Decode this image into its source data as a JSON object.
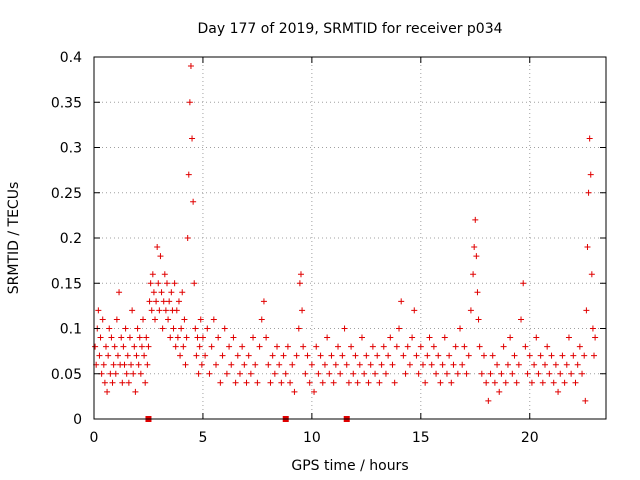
{
  "chart_data": {
    "type": "scatter",
    "title": "Day 177 of 2019, SRMTID for receiver p034",
    "xlabel": "GPS time / hours",
    "ylabel": "SRMTID / TECUs",
    "xlim": [
      0,
      23.5
    ],
    "ylim": [
      0,
      0.4
    ],
    "x_ticks": [
      0,
      5,
      10,
      15,
      20
    ],
    "y_ticks": [
      0,
      0.05,
      0.1,
      0.15,
      0.2,
      0.25,
      0.3,
      0.35,
      0.4
    ],
    "x_tick_labels": [
      "0",
      "5",
      "10",
      "15",
      "20"
    ],
    "y_tick_labels": [
      "0",
      "0.05",
      "0.1",
      "0.15",
      "0.2",
      "0.25",
      "0.3",
      "0.35",
      "0.4"
    ],
    "grid": true,
    "marker": "+",
    "color": "#e00000",
    "series": [
      {
        "name": "SRMTID",
        "points": [
          [
            0.05,
            0.08
          ],
          [
            0.1,
            0.06
          ],
          [
            0.15,
            0.1
          ],
          [
            0.2,
            0.12
          ],
          [
            0.25,
            0.07
          ],
          [
            0.3,
            0.09
          ],
          [
            0.35,
            0.05
          ],
          [
            0.4,
            0.11
          ],
          [
            0.45,
            0.06
          ],
          [
            0.5,
            0.04
          ],
          [
            0.55,
            0.08
          ],
          [
            0.6,
            0.03
          ],
          [
            0.65,
            0.07
          ],
          [
            0.7,
            0.1
          ],
          [
            0.75,
            0.05
          ],
          [
            0.8,
            0.09
          ],
          [
            0.85,
            0.04
          ],
          [
            0.9,
            0.06
          ],
          [
            0.95,
            0.08
          ],
          [
            1.0,
            0.05
          ],
          [
            1.05,
            0.11
          ],
          [
            1.1,
            0.07
          ],
          [
            1.15,
            0.14
          ],
          [
            1.2,
            0.06
          ],
          [
            1.25,
            0.09
          ],
          [
            1.3,
            0.04
          ],
          [
            1.35,
            0.08
          ],
          [
            1.4,
            0.06
          ],
          [
            1.45,
            0.1
          ],
          [
            1.5,
            0.05
          ],
          [
            1.55,
            0.07
          ],
          [
            1.6,
            0.04
          ],
          [
            1.65,
            0.09
          ],
          [
            1.7,
            0.06
          ],
          [
            1.75,
            0.12
          ],
          [
            1.8,
            0.05
          ],
          [
            1.85,
            0.08
          ],
          [
            1.9,
            0.03
          ],
          [
            1.95,
            0.07
          ],
          [
            2.0,
            0.1
          ],
          [
            2.05,
            0.06
          ],
          [
            2.1,
            0.09
          ],
          [
            2.15,
            0.05
          ],
          [
            2.2,
            0.08
          ],
          [
            2.25,
            0.11
          ],
          [
            2.3,
            0.07
          ],
          [
            2.35,
            0.04
          ],
          [
            2.4,
            0.09
          ],
          [
            2.45,
            0.06
          ],
          [
            2.5,
            0.08
          ],
          [
            2.55,
            0.13
          ],
          [
            2.6,
            0.15
          ],
          [
            2.65,
            0.12
          ],
          [
            2.7,
            0.16
          ],
          [
            2.75,
            0.14
          ],
          [
            2.8,
            0.11
          ],
          [
            2.85,
            0.13
          ],
          [
            2.9,
            0.19
          ],
          [
            2.95,
            0.15
          ],
          [
            3.0,
            0.12
          ],
          [
            3.05,
            0.18
          ],
          [
            3.1,
            0.14
          ],
          [
            3.15,
            0.1
          ],
          [
            3.2,
            0.13
          ],
          [
            3.25,
            0.16
          ],
          [
            3.3,
            0.12
          ],
          [
            3.35,
            0.15
          ],
          [
            3.4,
            0.11
          ],
          [
            3.45,
            0.13
          ],
          [
            3.5,
            0.09
          ],
          [
            3.55,
            0.14
          ],
          [
            3.6,
            0.12
          ],
          [
            3.65,
            0.1
          ],
          [
            3.7,
            0.15
          ],
          [
            3.75,
            0.08
          ],
          [
            3.8,
            0.12
          ],
          [
            3.85,
            0.09
          ],
          [
            3.9,
            0.13
          ],
          [
            3.95,
            0.07
          ],
          [
            4.0,
            0.1
          ],
          [
            4.05,
            0.14
          ],
          [
            4.1,
            0.08
          ],
          [
            4.15,
            0.11
          ],
          [
            4.2,
            0.06
          ],
          [
            4.25,
            0.09
          ],
          [
            4.3,
            0.2
          ],
          [
            4.35,
            0.27
          ],
          [
            4.4,
            0.35
          ],
          [
            4.45,
            0.39
          ],
          [
            4.5,
            0.31
          ],
          [
            4.55,
            0.24
          ],
          [
            4.6,
            0.15
          ],
          [
            4.65,
            0.1
          ],
          [
            4.7,
            0.07
          ],
          [
            4.75,
            0.09
          ],
          [
            4.8,
            0.05
          ],
          [
            4.85,
            0.08
          ],
          [
            4.9,
            0.11
          ],
          [
            4.95,
            0.06
          ],
          [
            5.0,
            0.09
          ],
          [
            5.1,
            0.07
          ],
          [
            5.2,
            0.1
          ],
          [
            5.3,
            0.05
          ],
          [
            5.4,
            0.08
          ],
          [
            5.5,
            0.11
          ],
          [
            5.6,
            0.06
          ],
          [
            5.7,
            0.09
          ],
          [
            5.8,
            0.04
          ],
          [
            5.9,
            0.07
          ],
          [
            6.0,
            0.1
          ],
          [
            6.1,
            0.05
          ],
          [
            6.2,
            0.08
          ],
          [
            6.3,
            0.06
          ],
          [
            6.4,
            0.09
          ],
          [
            6.5,
            0.04
          ],
          [
            6.6,
            0.07
          ],
          [
            6.7,
            0.05
          ],
          [
            6.8,
            0.08
          ],
          [
            6.9,
            0.06
          ],
          [
            7.0,
            0.04
          ],
          [
            7.1,
            0.07
          ],
          [
            7.2,
            0.05
          ],
          [
            7.3,
            0.09
          ],
          [
            7.4,
            0.06
          ],
          [
            7.5,
            0.04
          ],
          [
            7.6,
            0.08
          ],
          [
            7.7,
            0.11
          ],
          [
            7.8,
            0.13
          ],
          [
            7.9,
            0.09
          ],
          [
            8.0,
            0.06
          ],
          [
            8.1,
            0.04
          ],
          [
            8.2,
            0.07
          ],
          [
            8.3,
            0.05
          ],
          [
            8.4,
            0.08
          ],
          [
            8.5,
            0.06
          ],
          [
            8.6,
            0.04
          ],
          [
            8.7,
            0.07
          ],
          [
            8.8,
            0.05
          ],
          [
            8.9,
            0.08
          ],
          [
            9.0,
            0.04
          ],
          [
            9.1,
            0.06
          ],
          [
            9.2,
            0.03
          ],
          [
            9.3,
            0.07
          ],
          [
            9.4,
            0.1
          ],
          [
            9.45,
            0.15
          ],
          [
            9.5,
            0.16
          ],
          [
            9.55,
            0.12
          ],
          [
            9.6,
            0.08
          ],
          [
            9.7,
            0.05
          ],
          [
            9.8,
            0.07
          ],
          [
            9.9,
            0.04
          ],
          [
            10.0,
            0.06
          ],
          [
            10.1,
            0.03
          ],
          [
            10.2,
            0.08
          ],
          [
            10.3,
            0.05
          ],
          [
            10.4,
            0.07
          ],
          [
            10.5,
            0.04
          ],
          [
            10.6,
            0.06
          ],
          [
            10.7,
            0.09
          ],
          [
            10.8,
            0.05
          ],
          [
            10.9,
            0.07
          ],
          [
            11.0,
            0.04
          ],
          [
            11.1,
            0.06
          ],
          [
            11.2,
            0.08
          ],
          [
            11.3,
            0.05
          ],
          [
            11.4,
            0.07
          ],
          [
            11.5,
            0.1
          ],
          [
            11.6,
            0.06
          ],
          [
            11.7,
            0.04
          ],
          [
            11.8,
            0.08
          ],
          [
            11.9,
            0.05
          ],
          [
            12.0,
            0.07
          ],
          [
            12.1,
            0.04
          ],
          [
            12.2,
            0.06
          ],
          [
            12.3,
            0.09
          ],
          [
            12.4,
            0.05
          ],
          [
            12.5,
            0.07
          ],
          [
            12.6,
            0.04
          ],
          [
            12.7,
            0.06
          ],
          [
            12.8,
            0.08
          ],
          [
            12.9,
            0.05
          ],
          [
            13.0,
            0.07
          ],
          [
            13.1,
            0.04
          ],
          [
            13.2,
            0.06
          ],
          [
            13.3,
            0.08
          ],
          [
            13.4,
            0.05
          ],
          [
            13.5,
            0.07
          ],
          [
            13.6,
            0.09
          ],
          [
            13.7,
            0.06
          ],
          [
            13.8,
            0.04
          ],
          [
            13.9,
            0.08
          ],
          [
            14.0,
            0.1
          ],
          [
            14.1,
            0.13
          ],
          [
            14.2,
            0.07
          ],
          [
            14.3,
            0.05
          ],
          [
            14.4,
            0.08
          ],
          [
            14.5,
            0.06
          ],
          [
            14.6,
            0.09
          ],
          [
            14.7,
            0.12
          ],
          [
            14.8,
            0.07
          ],
          [
            14.9,
            0.05
          ],
          [
            15.0,
            0.08
          ],
          [
            15.1,
            0.06
          ],
          [
            15.2,
            0.04
          ],
          [
            15.3,
            0.07
          ],
          [
            15.4,
            0.09
          ],
          [
            15.5,
            0.06
          ],
          [
            15.6,
            0.08
          ],
          [
            15.7,
            0.05
          ],
          [
            15.8,
            0.07
          ],
          [
            15.9,
            0.04
          ],
          [
            16.0,
            0.06
          ],
          [
            16.1,
            0.09
          ],
          [
            16.2,
            0.05
          ],
          [
            16.3,
            0.07
          ],
          [
            16.4,
            0.04
          ],
          [
            16.5,
            0.06
          ],
          [
            16.6,
            0.08
          ],
          [
            16.7,
            0.05
          ],
          [
            16.8,
            0.1
          ],
          [
            16.9,
            0.06
          ],
          [
            17.0,
            0.08
          ],
          [
            17.1,
            0.05
          ],
          [
            17.2,
            0.07
          ],
          [
            17.3,
            0.12
          ],
          [
            17.4,
            0.16
          ],
          [
            17.45,
            0.19
          ],
          [
            17.5,
            0.22
          ],
          [
            17.55,
            0.18
          ],
          [
            17.6,
            0.14
          ],
          [
            17.65,
            0.11
          ],
          [
            17.7,
            0.08
          ],
          [
            17.8,
            0.05
          ],
          [
            17.9,
            0.07
          ],
          [
            18.0,
            0.04
          ],
          [
            18.1,
            0.02
          ],
          [
            18.2,
            0.05
          ],
          [
            18.3,
            0.07
          ],
          [
            18.4,
            0.04
          ],
          [
            18.5,
            0.06
          ],
          [
            18.6,
            0.03
          ],
          [
            18.7,
            0.05
          ],
          [
            18.8,
            0.08
          ],
          [
            18.9,
            0.04
          ],
          [
            19.0,
            0.06
          ],
          [
            19.1,
            0.09
          ],
          [
            19.2,
            0.05
          ],
          [
            19.3,
            0.07
          ],
          [
            19.4,
            0.04
          ],
          [
            19.5,
            0.06
          ],
          [
            19.6,
            0.11
          ],
          [
            19.7,
            0.15
          ],
          [
            19.8,
            0.08
          ],
          [
            19.9,
            0.05
          ],
          [
            20.0,
            0.07
          ],
          [
            20.1,
            0.04
          ],
          [
            20.2,
            0.06
          ],
          [
            20.3,
            0.09
          ],
          [
            20.4,
            0.05
          ],
          [
            20.5,
            0.07
          ],
          [
            20.6,
            0.04
          ],
          [
            20.7,
            0.06
          ],
          [
            20.8,
            0.08
          ],
          [
            20.9,
            0.05
          ],
          [
            21.0,
            0.07
          ],
          [
            21.1,
            0.04
          ],
          [
            21.2,
            0.06
          ],
          [
            21.3,
            0.03
          ],
          [
            21.4,
            0.05
          ],
          [
            21.5,
            0.07
          ],
          [
            21.6,
            0.04
          ],
          [
            21.7,
            0.06
          ],
          [
            21.8,
            0.09
          ],
          [
            21.9,
            0.05
          ],
          [
            22.0,
            0.07
          ],
          [
            22.1,
            0.04
          ],
          [
            22.2,
            0.06
          ],
          [
            22.3,
            0.08
          ],
          [
            22.4,
            0.05
          ],
          [
            22.5,
            0.07
          ],
          [
            22.55,
            0.02
          ],
          [
            22.6,
            0.12
          ],
          [
            22.65,
            0.19
          ],
          [
            22.7,
            0.25
          ],
          [
            22.75,
            0.31
          ],
          [
            22.8,
            0.27
          ],
          [
            22.85,
            0.16
          ],
          [
            22.9,
            0.1
          ],
          [
            22.95,
            0.07
          ],
          [
            23.0,
            0.09
          ]
        ]
      }
    ],
    "gap_markers": [
      2.5,
      8.8,
      11.6
    ]
  }
}
